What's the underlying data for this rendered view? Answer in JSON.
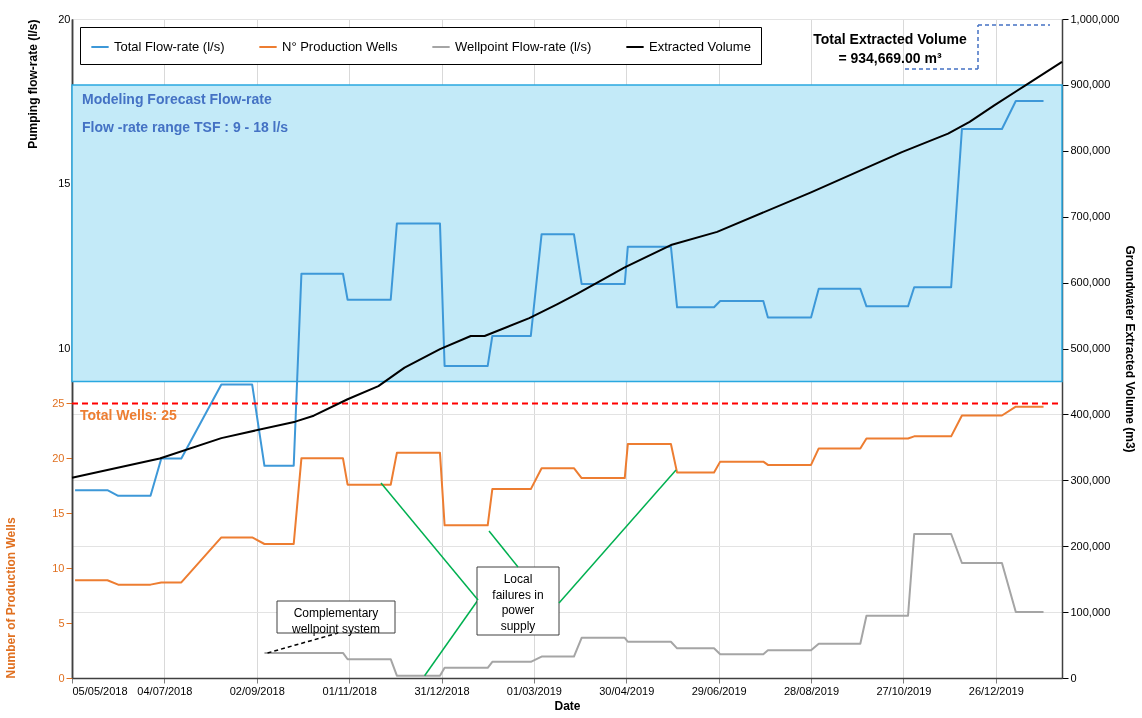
{
  "chart_data": {
    "type": "line",
    "xlabel": "Date",
    "ylabel": "Pumping flow-rate (l/s)",
    "y3label": "Number of Production Wells",
    "y2label": "Groundwater Extracted Volume (m3)",
    "xlim": [
      "2018-05-05",
      "2020-02-07"
    ],
    "xticks": [
      {
        "value": "2018-05-05",
        "label": "05/05/2018"
      },
      {
        "value": "2018-07-04",
        "label": "04/07/2018"
      },
      {
        "value": "2018-09-02",
        "label": "02/09/2018"
      },
      {
        "value": "2018-11-01",
        "label": "01/11/2018"
      },
      {
        "value": "2018-12-31",
        "label": "31/12/2018"
      },
      {
        "value": "2019-03-01",
        "label": "01/03/2019"
      },
      {
        "value": "2019-04-30",
        "label": "30/04/2019"
      },
      {
        "value": "2019-06-29",
        "label": "29/06/2019"
      },
      {
        "value": "2019-08-28",
        "label": "28/08/2019"
      },
      {
        "value": "2019-10-27",
        "label": "27/10/2019"
      },
      {
        "value": "2019-12-26",
        "label": "26/12/2019"
      }
    ],
    "ylim": [
      0,
      20
    ],
    "yticks": [
      10,
      15,
      20
    ],
    "y3lim": [
      0,
      60
    ],
    "y3ticks": [
      0,
      5,
      10,
      15,
      20,
      25
    ],
    "y2lim": [
      0,
      1000000
    ],
    "y2ticks": [
      0,
      {
        "value": 100000,
        "label": "100,000"
      },
      {
        "value": 200000,
        "label": "200,000"
      },
      {
        "value": 300000,
        "label": "300,000"
      },
      {
        "value": 400000,
        "label": "400,000"
      },
      {
        "value": 500000,
        "label": "500,000"
      },
      {
        "value": 600000,
        "label": "600,000"
      },
      {
        "value": 700000,
        "label": "700,000"
      },
      {
        "value": 800000,
        "label": "800,000"
      },
      {
        "value": 900000,
        "label": "900,000"
      },
      {
        "value": 1000000,
        "label": "1,000,000"
      }
    ],
    "grid": true,
    "legend": "top left",
    "marker": "none",
    "line_style": "solid",
    "series": [
      {
        "name": "Total Flow-rate (l/s)",
        "color": "#3d98d8",
        "x": [
          "2018-05-07",
          "2018-05-28",
          "2018-06-04",
          "2018-06-25",
          "2018-07-02",
          "2018-07-15",
          "2018-08-10",
          "2018-08-30",
          "2018-09-07",
          "2018-09-26",
          "2018-10-01",
          "2018-10-28",
          "2018-10-31",
          "2018-11-28",
          "2018-12-02",
          "2018-12-30",
          "2019-01-02",
          "2019-01-30",
          "2019-02-02",
          "2019-02-27",
          "2019-03-06",
          "2019-03-27",
          "2019-04-01",
          "2019-04-29",
          "2019-05-01",
          "2019-05-29",
          "2019-06-02",
          "2019-06-26",
          "2019-06-30",
          "2019-07-28",
          "2019-07-31",
          "2019-08-28",
          "2019-09-02",
          "2019-09-29",
          "2019-10-03",
          "2019-10-30",
          "2019-11-03",
          "2019-11-27",
          "2019-12-04",
          "2019-12-30",
          "2020-01-08",
          "2020-01-26"
        ],
        "values": [
          5.7,
          5.7,
          5.53,
          5.53,
          6.66,
          6.66,
          8.91,
          8.91,
          6.44,
          6.44,
          12.27,
          12.27,
          11.48,
          11.48,
          13.79,
          13.79,
          9.47,
          9.47,
          10.38,
          10.38,
          13.47,
          13.47,
          11.96,
          11.96,
          13.09,
          13.09,
          11.25,
          11.25,
          11.44,
          11.44,
          10.94,
          10.94,
          11.81,
          11.81,
          11.28,
          11.28,
          11.86,
          11.86,
          16.66,
          16.66,
          17.51,
          17.51
        ]
      },
      {
        "name": "N° Production Wells",
        "color": "#ed7d31",
        "axis": "y3",
        "x": [
          "2018-05-07",
          "2018-05-28",
          "2018-06-04",
          "2018-06-25",
          "2018-07-02",
          "2018-07-15",
          "2018-08-10",
          "2018-08-30",
          "2018-09-07",
          "2018-09-26",
          "2018-10-01",
          "2018-10-28",
          "2018-10-31",
          "2018-11-28",
          "2018-12-02",
          "2018-12-30",
          "2019-01-02",
          "2019-01-30",
          "2019-02-02",
          "2019-02-27",
          "2019-03-06",
          "2019-03-27",
          "2019-04-01",
          "2019-04-29",
          "2019-05-01",
          "2019-05-29",
          "2019-06-02",
          "2019-06-26",
          "2019-06-30",
          "2019-07-28",
          "2019-07-31",
          "2019-08-28",
          "2019-09-02",
          "2019-09-29",
          "2019-10-03",
          "2019-10-30",
          "2019-11-03",
          "2019-11-27",
          "2019-12-04",
          "2019-12-30",
          "2020-01-08",
          "2020-01-26"
        ],
        "values": [
          8.9,
          8.9,
          8.5,
          8.5,
          8.7,
          8.7,
          12.8,
          12.8,
          12.2,
          12.2,
          20.0,
          20.0,
          17.6,
          17.6,
          20.5,
          20.5,
          13.9,
          13.9,
          17.2,
          17.2,
          19.1,
          19.1,
          18.2,
          18.2,
          21.3,
          21.3,
          18.7,
          18.7,
          19.7,
          19.7,
          19.4,
          19.4,
          20.9,
          20.9,
          21.8,
          21.8,
          22.0,
          22.0,
          23.9,
          23.9,
          24.7,
          24.7
        ]
      },
      {
        "name": "Wellpoint Flow-rate (l/s)",
        "color": "#a5a5a5",
        "x": [
          "2018-09-07",
          "2018-10-28",
          "2018-10-31",
          "2018-11-28",
          "2018-12-02",
          "2018-12-30",
          "2019-01-02",
          "2019-01-30",
          "2019-02-02",
          "2019-02-27",
          "2019-03-06",
          "2019-03-27",
          "2019-04-01",
          "2019-04-29",
          "2019-05-01",
          "2019-05-29",
          "2019-06-02",
          "2019-06-26",
          "2019-06-30",
          "2019-07-28",
          "2019-07-31",
          "2019-08-28",
          "2019-09-02",
          "2019-09-29",
          "2019-10-03",
          "2019-10-30",
          "2019-11-03",
          "2019-11-27",
          "2019-12-04",
          "2019-12-30",
          "2020-01-08",
          "2020-01-26"
        ],
        "values": [
          0.76,
          0.76,
          0.57,
          0.57,
          0.07,
          0.07,
          0.31,
          0.31,
          0.49,
          0.49,
          0.65,
          0.65,
          1.22,
          1.22,
          1.1,
          1.1,
          0.9,
          0.9,
          0.72,
          0.72,
          0.84,
          0.84,
          1.04,
          1.04,
          1.89,
          1.89,
          4.37,
          4.37,
          3.49,
          3.49,
          2.0,
          2.0
        ]
      },
      {
        "name": "Extracted Volume",
        "color": "#000000",
        "axis": "y2",
        "x": [
          "2018-05-05",
          "2018-07-01",
          "2018-08-10",
          "2018-09-27",
          "2018-10-09",
          "2018-10-31",
          "2018-11-20",
          "2018-12-07",
          "2018-12-30",
          "2019-01-19",
          "2019-01-28",
          "2019-02-26",
          "2019-03-16",
          "2019-03-29",
          "2019-04-29",
          "2019-05-29",
          "2019-06-28",
          "2019-08-28",
          "2019-10-26",
          "2019-11-25",
          "2019-12-09",
          "2019-12-25",
          "2020-01-14",
          "2020-02-07"
        ],
        "values": [
          304000,
          333000,
          364000,
          389000,
          398000,
          423000,
          443000,
          471000,
          499000,
          519000,
          519000,
          546000,
          567000,
          583000,
          623000,
          657000,
          677000,
          737000,
          798000,
          826000,
          844000,
          869000,
          899000,
          935000
        ]
      }
    ],
    "bands": [
      {
        "axis": "y",
        "from": 9,
        "to": 18,
        "label": "Modeling Forecast Flow-rate\nFlow -rate range TSF : 9 - 18 l/s",
        "color": "#c3eaf8"
      }
    ],
    "ref_lines": [
      {
        "axis": "y3",
        "value": 25,
        "label": "Total Wells: 25",
        "color": "#ff0000",
        "line_style": "dashed"
      }
    ],
    "annotations": [
      "Total Extracted Volume\n= 934,669.00 m³",
      {
        "text": "Complementary\nwellpoint system",
        "x": "2018-09-09",
        "y": 0.76
      },
      {
        "text": "Local\nfailures in\npower\nsupply",
        "x": "2018-12-20",
        "y": 0.07
      }
    ]
  }
}
